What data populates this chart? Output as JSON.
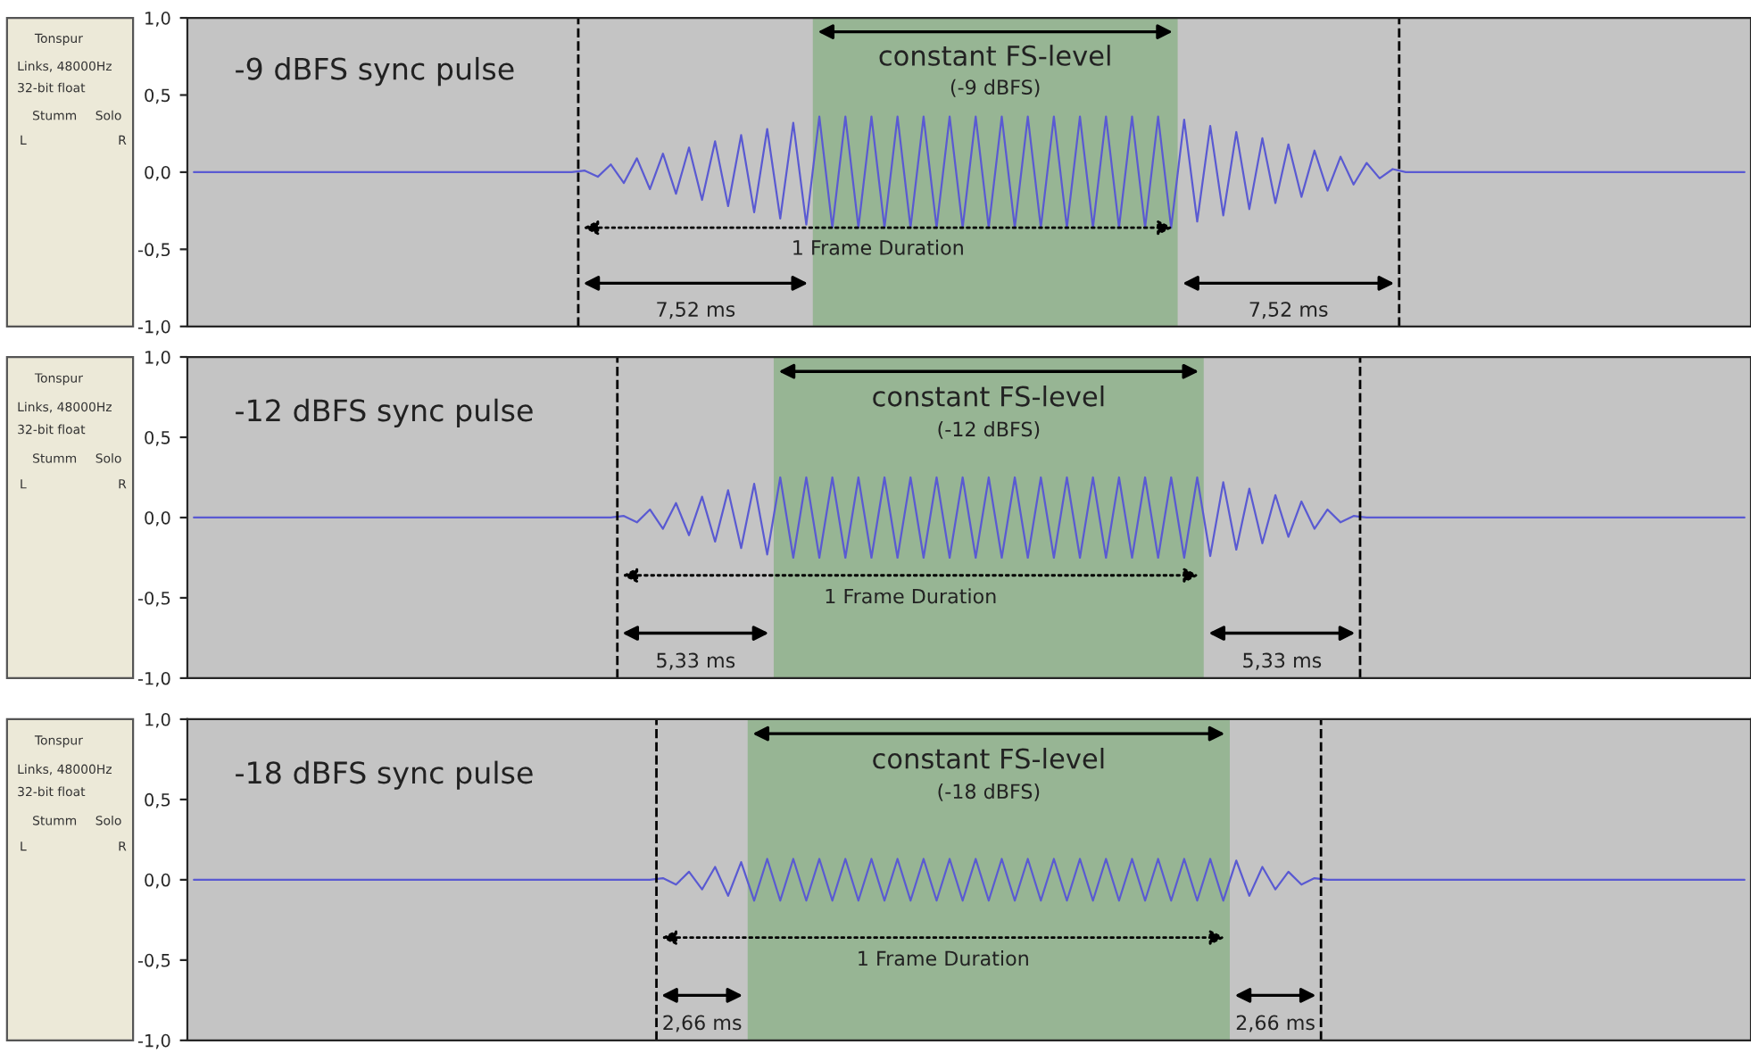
{
  "chart_data": [
    {
      "type": "line",
      "title": "-9 dBFS sync pulse",
      "ylim": [
        -1,
        1
      ],
      "yticks": [
        {
          "value": 1,
          "label": "1,0"
        },
        {
          "value": 0.5,
          "label": "0,5"
        },
        {
          "value": 0,
          "label": "0,0"
        },
        {
          "value": -0.5,
          "label": "-0,5"
        },
        {
          "value": -1,
          "label": "-1,0"
        }
      ],
      "tick_labels": "y",
      "grid": false,
      "categories": [
        null,
        null,
        null,
        null,
        null,
        null,
        null,
        null,
        null,
        null,
        null,
        null,
        null,
        null,
        null,
        null,
        null,
        null,
        null,
        null,
        null,
        null,
        null,
        null,
        null,
        null,
        null,
        null,
        null,
        null,
        null,
        null,
        null,
        null,
        null,
        null,
        null,
        null,
        null,
        null,
        null,
        null,
        null,
        null,
        null,
        null,
        null,
        null,
        null,
        null,
        null,
        null,
        null,
        null,
        null,
        null,
        null,
        null,
        null,
        null,
        null,
        null,
        null,
        null,
        null,
        null,
        null,
        null,
        null,
        null,
        null,
        null,
        null,
        null,
        null,
        null,
        null,
        null,
        null,
        null,
        null,
        null,
        null,
        null,
        null,
        null,
        null,
        null,
        null,
        null,
        null,
        null,
        null,
        null,
        null,
        null,
        null,
        null,
        null,
        null,
        null,
        null,
        null,
        null,
        null,
        null,
        null,
        null,
        null,
        null,
        null,
        null,
        null,
        null,
        null,
        null,
        null,
        null,
        null,
        null
      ],
      "series": [
        {
          "color": "#5a5ad2",
          "values": [
            0,
            0,
            0,
            0,
            0,
            0,
            0,
            0,
            0,
            0,
            0,
            0,
            0,
            0,
            0,
            0,
            0,
            0,
            0,
            0,
            0,
            0,
            0,
            0,
            0,
            0,
            0,
            0,
            0,
            0,
            0.01,
            -0.03,
            0.05,
            -0.07,
            0.09,
            -0.11,
            0.12,
            -0.14,
            0.16,
            -0.18,
            0.2,
            -0.22,
            0.24,
            -0.26,
            0.28,
            -0.3,
            0.32,
            -0.34,
            0.36,
            -0.36,
            0.36,
            -0.36,
            0.36,
            -0.36,
            0.36,
            -0.36,
            0.36,
            -0.36,
            0.36,
            -0.36,
            0.36,
            -0.36,
            0.36,
            -0.36,
            0.36,
            -0.36,
            0.36,
            -0.36,
            0.36,
            -0.36,
            0.36,
            -0.36,
            0.36,
            -0.36,
            0.36,
            -0.36,
            0.34,
            -0.32,
            0.3,
            -0.28,
            0.26,
            -0.24,
            0.22,
            -0.2,
            0.18,
            -0.16,
            0.14,
            -0.12,
            0.1,
            -0.08,
            0.06,
            -0.04,
            0.02,
            0,
            0,
            0,
            0,
            0,
            0,
            0,
            0,
            0,
            0,
            0,
            0,
            0,
            0,
            0,
            0,
            0,
            0,
            0,
            0,
            0,
            0,
            0,
            0,
            0,
            0,
            0
          ]
        }
      ],
      "annotations": [
        "constant FS-level",
        "(-9 dBFS)",
        "1 Frame Duration",
        "7,52 ms",
        "7,52 ms",
        "Tonspur",
        "Links, 48000Hz",
        "32-bit float",
        "Stumm",
        "Solo",
        "L",
        "R"
      ]
    },
    {
      "type": "line",
      "title": "-12 dBFS sync pulse",
      "ylim": [
        -1,
        1
      ],
      "yticks": [
        {
          "value": 1,
          "label": "1,0"
        },
        {
          "value": 0.5,
          "label": "0,5"
        },
        {
          "value": 0,
          "label": "0,0"
        },
        {
          "value": -0.5,
          "label": "-0,5"
        },
        {
          "value": -1,
          "label": "-1,0"
        }
      ],
      "tick_labels": "y",
      "grid": false,
      "categories": [
        null,
        null,
        null,
        null,
        null,
        null,
        null,
        null,
        null,
        null,
        null,
        null,
        null,
        null,
        null,
        null,
        null,
        null,
        null,
        null,
        null,
        null,
        null,
        null,
        null,
        null,
        null,
        null,
        null,
        null,
        null,
        null,
        null,
        null,
        null,
        null,
        null,
        null,
        null,
        null,
        null,
        null,
        null,
        null,
        null,
        null,
        null,
        null,
        null,
        null,
        null,
        null,
        null,
        null,
        null,
        null,
        null,
        null,
        null,
        null,
        null,
        null,
        null,
        null,
        null,
        null,
        null,
        null,
        null,
        null,
        null,
        null,
        null,
        null,
        null,
        null,
        null,
        null,
        null,
        null,
        null,
        null,
        null,
        null,
        null,
        null,
        null,
        null,
        null,
        null,
        null,
        null,
        null,
        null,
        null,
        null,
        null,
        null,
        null,
        null,
        null,
        null,
        null,
        null,
        null,
        null,
        null,
        null,
        null,
        null,
        null,
        null,
        null,
        null,
        null,
        null,
        null,
        null,
        null,
        null
      ],
      "series": [
        {
          "color": "#5a5ad2",
          "values": [
            0,
            0,
            0,
            0,
            0,
            0,
            0,
            0,
            0,
            0,
            0,
            0,
            0,
            0,
            0,
            0,
            0,
            0,
            0,
            0,
            0,
            0,
            0,
            0,
            0,
            0,
            0,
            0,
            0,
            0,
            0,
            0,
            0,
            0.01,
            -0.03,
            0.05,
            -0.07,
            0.09,
            -0.11,
            0.13,
            -0.15,
            0.17,
            -0.19,
            0.21,
            -0.23,
            0.25,
            -0.25,
            0.25,
            -0.25,
            0.25,
            -0.25,
            0.25,
            -0.25,
            0.25,
            -0.25,
            0.25,
            -0.25,
            0.25,
            -0.25,
            0.25,
            -0.25,
            0.25,
            -0.25,
            0.25,
            -0.25,
            0.25,
            -0.25,
            0.25,
            -0.25,
            0.25,
            -0.25,
            0.25,
            -0.25,
            0.25,
            -0.25,
            0.25,
            -0.25,
            0.25,
            -0.24,
            0.22,
            -0.2,
            0.18,
            -0.16,
            0.14,
            -0.12,
            0.1,
            -0.07,
            0.05,
            -0.03,
            0.01,
            0,
            0,
            0,
            0,
            0,
            0,
            0,
            0,
            0,
            0,
            0,
            0,
            0,
            0,
            0,
            0,
            0,
            0,
            0,
            0,
            0,
            0,
            0,
            0,
            0,
            0,
            0,
            0,
            0,
            0
          ]
        }
      ],
      "annotations": [
        "constant FS-level",
        "(-12 dBFS)",
        "1 Frame Duration",
        "5,33 ms",
        "5,33 ms",
        "Tonspur",
        "Links, 48000Hz",
        "32-bit float",
        "Stumm",
        "Solo",
        "L",
        "R"
      ]
    },
    {
      "type": "line",
      "title": "-18 dBFS sync pulse",
      "ylim": [
        -1,
        1
      ],
      "yticks": [
        {
          "value": 1,
          "label": "1,0"
        },
        {
          "value": 0.5,
          "label": "0,5"
        },
        {
          "value": 0,
          "label": "0,0"
        },
        {
          "value": -0.5,
          "label": "-0,5"
        },
        {
          "value": -1,
          "label": "-1,0"
        }
      ],
      "tick_labels": "y",
      "grid": false,
      "categories": [
        null,
        null,
        null,
        null,
        null,
        null,
        null,
        null,
        null,
        null,
        null,
        null,
        null,
        null,
        null,
        null,
        null,
        null,
        null,
        null,
        null,
        null,
        null,
        null,
        null,
        null,
        null,
        null,
        null,
        null,
        null,
        null,
        null,
        null,
        null,
        null,
        null,
        null,
        null,
        null,
        null,
        null,
        null,
        null,
        null,
        null,
        null,
        null,
        null,
        null,
        null,
        null,
        null,
        null,
        null,
        null,
        null,
        null,
        null,
        null,
        null,
        null,
        null,
        null,
        null,
        null,
        null,
        null,
        null,
        null,
        null,
        null,
        null,
        null,
        null,
        null,
        null,
        null,
        null,
        null,
        null,
        null,
        null,
        null,
        null,
        null,
        null,
        null,
        null,
        null,
        null,
        null,
        null,
        null,
        null,
        null,
        null,
        null,
        null,
        null,
        null,
        null,
        null,
        null,
        null,
        null,
        null,
        null,
        null,
        null,
        null,
        null,
        null,
        null,
        null,
        null,
        null,
        null,
        null,
        null
      ],
      "series": [
        {
          "color": "#5a5ad2",
          "values": [
            0,
            0,
            0,
            0,
            0,
            0,
            0,
            0,
            0,
            0,
            0,
            0,
            0,
            0,
            0,
            0,
            0,
            0,
            0,
            0,
            0,
            0,
            0,
            0,
            0,
            0,
            0,
            0,
            0,
            0,
            0,
            0,
            0,
            0,
            0,
            0,
            0.01,
            -0.03,
            0.05,
            -0.06,
            0.08,
            -0.1,
            0.11,
            -0.13,
            0.13,
            -0.13,
            0.13,
            -0.13,
            0.13,
            -0.13,
            0.13,
            -0.13,
            0.13,
            -0.13,
            0.13,
            -0.13,
            0.13,
            -0.13,
            0.13,
            -0.13,
            0.13,
            -0.13,
            0.13,
            -0.13,
            0.13,
            -0.13,
            0.13,
            -0.13,
            0.13,
            -0.13,
            0.13,
            -0.13,
            0.13,
            -0.13,
            0.13,
            -0.13,
            0.13,
            -0.13,
            0.13,
            -0.13,
            0.12,
            -0.1,
            0.08,
            -0.06,
            0.05,
            -0.03,
            0.01,
            0,
            0,
            0,
            0,
            0,
            0,
            0,
            0,
            0,
            0,
            0,
            0,
            0,
            0,
            0,
            0,
            0,
            0,
            0,
            0,
            0,
            0,
            0,
            0,
            0,
            0,
            0,
            0,
            0,
            0,
            0,
            0,
            0
          ]
        }
      ],
      "annotations": [
        "constant FS-level",
        "(-18 dBFS)",
        "1 Frame Duration",
        "2,66 ms",
        "2,66 ms",
        "Tonspur",
        "Links, 48000Hz",
        "32-bit float",
        "Stumm",
        "Solo",
        "L",
        "R"
      ]
    }
  ]
}
